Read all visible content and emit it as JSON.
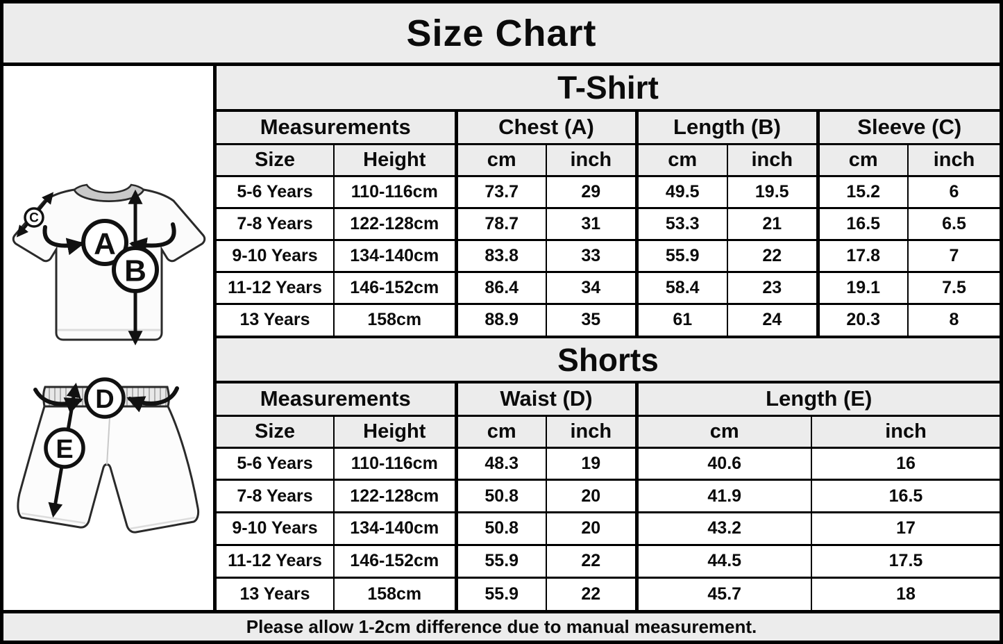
{
  "title": "Size Chart",
  "footer_note": "Please allow 1-2cm difference due to manual measurement.",
  "colors": {
    "band_bg": "#ececec",
    "cell_bg": "#ffffff",
    "border": "#000000",
    "diagram_stroke": "#2a2a2a"
  },
  "diagram": {
    "tshirt_name": "tshirt-measurement-diagram",
    "shorts_name": "shorts-measurement-diagram",
    "labels": {
      "chest": "A",
      "length_shirt": "B",
      "sleeve": "C",
      "waist": "D",
      "length_shorts": "E"
    }
  },
  "tshirt": {
    "title": "T-Shirt",
    "groups": [
      "Measurements",
      "Chest (A)",
      "Length (B)",
      "Sleeve (C)"
    ],
    "headers": [
      "Size",
      "Height",
      "cm",
      "inch",
      "cm",
      "inch",
      "cm",
      "inch"
    ],
    "rows": [
      [
        "5-6 Years",
        "110-116cm",
        "73.7",
        "29",
        "49.5",
        "19.5",
        "15.2",
        "6"
      ],
      [
        "7-8 Years",
        "122-128cm",
        "78.7",
        "31",
        "53.3",
        "21",
        "16.5",
        "6.5"
      ],
      [
        "9-10 Years",
        "134-140cm",
        "83.8",
        "33",
        "55.9",
        "22",
        "17.8",
        "7"
      ],
      [
        "11-12 Years",
        "146-152cm",
        "86.4",
        "34",
        "58.4",
        "23",
        "19.1",
        "7.5"
      ],
      [
        "13 Years",
        "158cm",
        "88.9",
        "35",
        "61",
        "24",
        "20.3",
        "8"
      ]
    ]
  },
  "shorts": {
    "title": "Shorts",
    "groups": [
      "Measurements",
      "Waist (D)",
      "Length (E)"
    ],
    "headers": [
      "Size",
      "Height",
      "cm",
      "inch",
      "cm",
      "inch"
    ],
    "rows": [
      [
        "5-6 Years",
        "110-116cm",
        "48.3",
        "19",
        "40.6",
        "16"
      ],
      [
        "7-8 Years",
        "122-128cm",
        "50.8",
        "20",
        "41.9",
        "16.5"
      ],
      [
        "9-10 Years",
        "134-140cm",
        "50.8",
        "20",
        "43.2",
        "17"
      ],
      [
        "11-12 Years",
        "146-152cm",
        "55.9",
        "22",
        "44.5",
        "17.5"
      ],
      [
        "13 Years",
        "158cm",
        "55.9",
        "22",
        "45.7",
        "18"
      ]
    ]
  }
}
